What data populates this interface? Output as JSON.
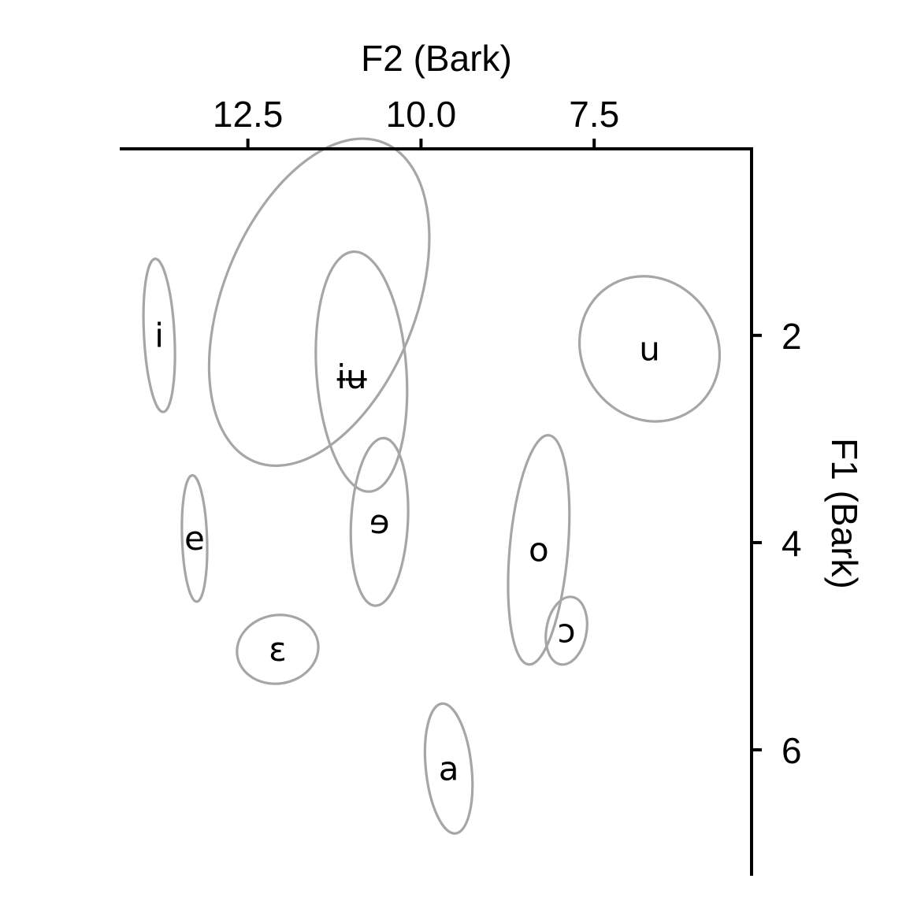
{
  "chart_data": {
    "type": "scatter",
    "title": "",
    "xlabel": "F2 (Bark)",
    "ylabel": "F1 (Bark)",
    "x_axis_position": "top",
    "y_axis_position": "right",
    "x_reversed": true,
    "y_reversed": true,
    "xlim": [
      14.35,
      5.25
    ],
    "ylim": [
      0.2,
      7.2
    ],
    "x_ticks": [
      {
        "value": 12.5,
        "label": "12.5"
      },
      {
        "value": 10.0,
        "label": "10.0"
      },
      {
        "value": 7.5,
        "label": "7.5"
      }
    ],
    "y_ticks": [
      {
        "value": 2,
        "label": "2"
      },
      {
        "value": 4,
        "label": "4"
      },
      {
        "value": 6,
        "label": "6"
      }
    ],
    "grid": false,
    "ellipse_color": "#a6a6a6",
    "vowels": [
      {
        "symbol": "i",
        "f2": 13.78,
        "f1": 2.0,
        "label_f2": 13.78,
        "label_f1": 2.0,
        "rx": 0.22,
        "ry": 0.74,
        "angle": -3
      },
      {
        "symbol": "ɨʉ",
        "f2": 11.47,
        "f1": 1.68,
        "label_f2": 11.0,
        "label_f1": 2.4,
        "rx": 1.39,
        "ry": 1.66,
        "angle": 22
      },
      {
        "symbol": "",
        "f2": 10.86,
        "f1": 2.35,
        "label_f2": 10.86,
        "label_f1": 2.35,
        "rx": 0.65,
        "ry": 1.16,
        "angle": -4
      },
      {
        "symbol": "u",
        "f2": 6.7,
        "f1": 2.13,
        "label_f2": 6.7,
        "label_f1": 2.13,
        "rx": 0.98,
        "ry": 0.72,
        "angle": -34
      },
      {
        "symbol": "e",
        "f2": 13.27,
        "f1": 3.96,
        "label_f2": 13.27,
        "label_f1": 3.96,
        "rx": 0.18,
        "ry": 0.61,
        "angle": -2
      },
      {
        "symbol": "ɘ",
        "f2": 10.6,
        "f1": 3.8,
        "label_f2": 10.6,
        "label_f1": 3.8,
        "rx": 0.41,
        "ry": 0.81,
        "angle": 3
      },
      {
        "symbol": "o",
        "f2": 8.3,
        "f1": 4.07,
        "label_f2": 8.3,
        "label_f1": 4.07,
        "rx": 0.42,
        "ry": 1.11,
        "angle": 5
      },
      {
        "symbol": "ɔ",
        "f2": 7.9,
        "f1": 4.85,
        "label_f2": 7.9,
        "label_f1": 4.85,
        "rx": 0.29,
        "ry": 0.33,
        "angle": 10
      },
      {
        "symbol": "ɛ",
        "f2": 12.07,
        "f1": 5.03,
        "label_f2": 12.07,
        "label_f1": 5.03,
        "rx": 0.59,
        "ry": 0.33,
        "angle": -10
      },
      {
        "symbol": "a",
        "f2": 9.6,
        "f1": 6.18,
        "label_f2": 9.6,
        "label_f1": 6.18,
        "rx": 0.33,
        "ry": 0.63,
        "angle": -6
      }
    ]
  }
}
